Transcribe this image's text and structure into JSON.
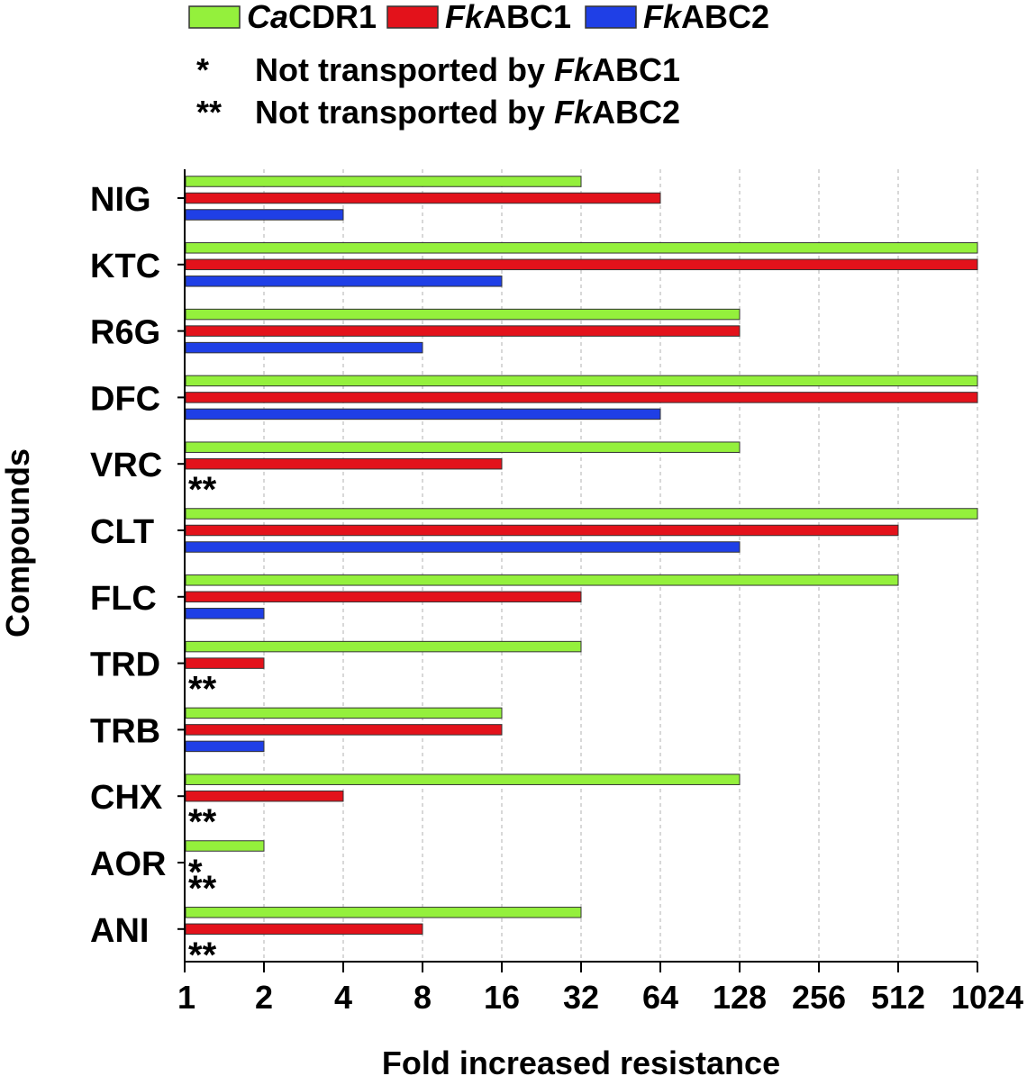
{
  "chart_data": {
    "type": "bar",
    "orientation": "horizontal",
    "x_scale": "log2",
    "xlim": [
      1,
      1024
    ],
    "xticks": [
      "1",
      "2",
      "4",
      "8",
      "16",
      "32",
      "64",
      "128",
      "256",
      "512",
      "1024"
    ],
    "xlabel": "Fold increased resistance",
    "ylabel": "Compounds",
    "grid": "vertical dashed",
    "legend_position": "top",
    "categories": [
      "NIG",
      "KTC",
      "R6G",
      "DFC",
      "VRC",
      "CLT",
      "FLC",
      "TRD",
      "TRB",
      "CHX",
      "AOR",
      "ANI"
    ],
    "series": [
      {
        "name_italic": "Ca",
        "name_rest": "CDR1",
        "color": "#94f03c",
        "values": [
          32,
          1024,
          128,
          1024,
          128,
          1024,
          512,
          32,
          16,
          128,
          2,
          32
        ]
      },
      {
        "name_italic": "Fk",
        "name_rest": "ABC1",
        "color": "#e3121b",
        "values": [
          64,
          1024,
          128,
          1024,
          16,
          512,
          32,
          2,
          16,
          4,
          null,
          8
        ]
      },
      {
        "name_italic": "Fk",
        "name_rest": "ABC2",
        "color": "#1f3fe6",
        "values": [
          4,
          16,
          8,
          64,
          null,
          128,
          2,
          null,
          2,
          null,
          null,
          null
        ]
      }
    ],
    "notes": [
      {
        "symbol": "*",
        "text": "Not transported by ",
        "italic": "Fk",
        "rest": "ABC1"
      },
      {
        "symbol": "**",
        "text": "Not transported by ",
        "italic": "Fk",
        "rest": "ABC2"
      }
    ],
    "annotations": [
      {
        "category": "VRC",
        "symbol": "**"
      },
      {
        "category": "TRD",
        "symbol": "**"
      },
      {
        "category": "CHX",
        "symbol": "**"
      },
      {
        "category": "AOR",
        "symbol": "*"
      },
      {
        "category": "AOR",
        "symbol": "**"
      },
      {
        "category": "ANI",
        "symbol": "**"
      }
    ]
  }
}
